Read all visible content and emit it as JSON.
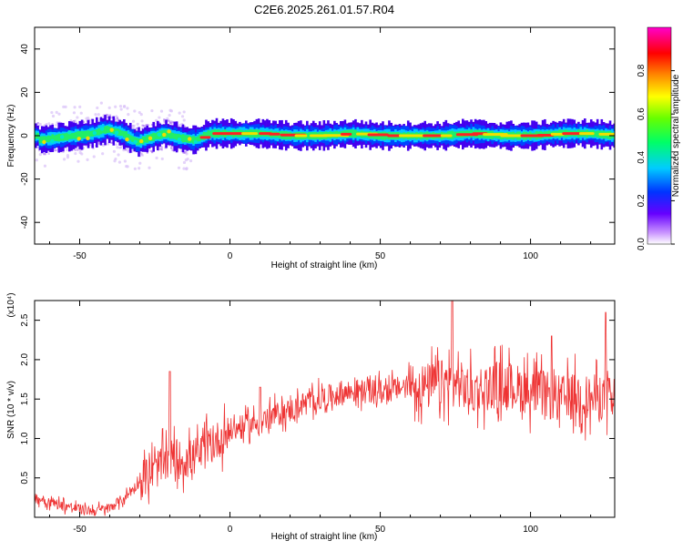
{
  "page": {
    "title": "C2E6.2025.261.01.57.R04"
  },
  "chart_data": [
    {
      "id": "spectrogram",
      "type": "heatmap",
      "title": "C2E6.2025.261.01.57.R04",
      "xlabel": "Height of straight line (km)",
      "ylabel": "Frequency (Hz)",
      "xlim": [
        -65,
        128
      ],
      "ylim": [
        -50,
        50
      ],
      "xticks": [
        -50,
        0,
        50,
        100
      ],
      "xtick_labels": [
        "-50",
        "0",
        "50",
        "100"
      ],
      "yticks": [
        -40,
        -20,
        0,
        20,
        40
      ],
      "ytick_labels": [
        "-40",
        "-20",
        "0",
        "20",
        "40"
      ],
      "colorbar": {
        "label": "Normalized spectral amplitude",
        "range": [
          0,
          1
        ],
        "ticks": [
          0.0,
          0.2,
          0.4,
          0.6,
          0.8
        ],
        "tick_labels": [
          "0.0",
          "0.2",
          "0.4",
          "0.6",
          "0.8"
        ],
        "colormap": "rainbow (white-purple-blue-cyan-green-yellow-red-magenta)"
      },
      "band_center": [
        {
          "x": -64,
          "y": -2
        },
        {
          "x": -58,
          "y": -1
        },
        {
          "x": -52,
          "y": 0
        },
        {
          "x": -46,
          "y": 1
        },
        {
          "x": -41,
          "y": 3
        },
        {
          "x": -36,
          "y": 1
        },
        {
          "x": -31,
          "y": -3
        },
        {
          "x": -27,
          "y": -1
        },
        {
          "x": -22,
          "y": 1
        },
        {
          "x": -17,
          "y": -1
        },
        {
          "x": -12,
          "y": -2
        },
        {
          "x": -7,
          "y": 1
        },
        {
          "x": 0,
          "y": 1
        },
        {
          "x": 10,
          "y": 1
        },
        {
          "x": 20,
          "y": 0
        },
        {
          "x": 30,
          "y": 0
        },
        {
          "x": 40,
          "y": 1
        },
        {
          "x": 50,
          "y": 0
        },
        {
          "x": 60,
          "y": 0
        },
        {
          "x": 70,
          "y": 0
        },
        {
          "x": 80,
          "y": 1
        },
        {
          "x": 90,
          "y": 0
        },
        {
          "x": 100,
          "y": 0
        },
        {
          "x": 110,
          "y": 1
        },
        {
          "x": 120,
          "y": 1
        },
        {
          "x": 128,
          "y": 0
        }
      ]
    },
    {
      "id": "snr",
      "type": "line",
      "xlabel": "Height of straight line (km)",
      "ylabel": "SNR (10 * v/v)",
      "y_multiplier": "(x10⁴)",
      "xlim": [
        -65,
        128
      ],
      "ylim": [
        0,
        2.75
      ],
      "xticks": [
        -50,
        0,
        50,
        100
      ],
      "xtick_labels": [
        "-50",
        "0",
        "50",
        "100"
      ],
      "yticks": [
        0.5,
        1.0,
        1.5,
        2.0,
        2.5
      ],
      "ytick_labels": [
        "0.5",
        "1.0",
        "1.5",
        "2.0",
        "2.5"
      ],
      "line_color": "#ee3333",
      "series": [
        {
          "x": [
            -65,
            -60,
            -55,
            -50,
            -45,
            -40,
            -35,
            -30,
            -25,
            -20,
            -15,
            -10,
            -5,
            0,
            5,
            10,
            15,
            20,
            25,
            30,
            35,
            40,
            45,
            50,
            55,
            60,
            65,
            70,
            75,
            80,
            85,
            90,
            95,
            100,
            105,
            110,
            115,
            120,
            125,
            128
          ],
          "values": [
            0.25,
            0.2,
            0.15,
            0.1,
            0.08,
            0.12,
            0.25,
            0.45,
            0.6,
            0.75,
            0.72,
            0.8,
            0.95,
            1.1,
            1.15,
            1.2,
            1.3,
            1.35,
            1.45,
            1.5,
            1.55,
            1.6,
            1.6,
            1.6,
            1.62,
            1.7,
            1.65,
            1.7,
            1.72,
            1.6,
            1.65,
            1.7,
            1.65,
            1.6,
            1.55,
            1.5,
            1.55,
            1.5,
            1.55,
            1.4
          ],
          "peaks": [
            {
              "x": -20,
              "y": 1.85
            },
            {
              "x": 10,
              "y": 1.65
            },
            {
              "x": 74,
              "y": 2.75
            },
            {
              "x": 107,
              "y": 2.3
            },
            {
              "x": 125,
              "y": 2.6
            }
          ]
        }
      ]
    }
  ]
}
